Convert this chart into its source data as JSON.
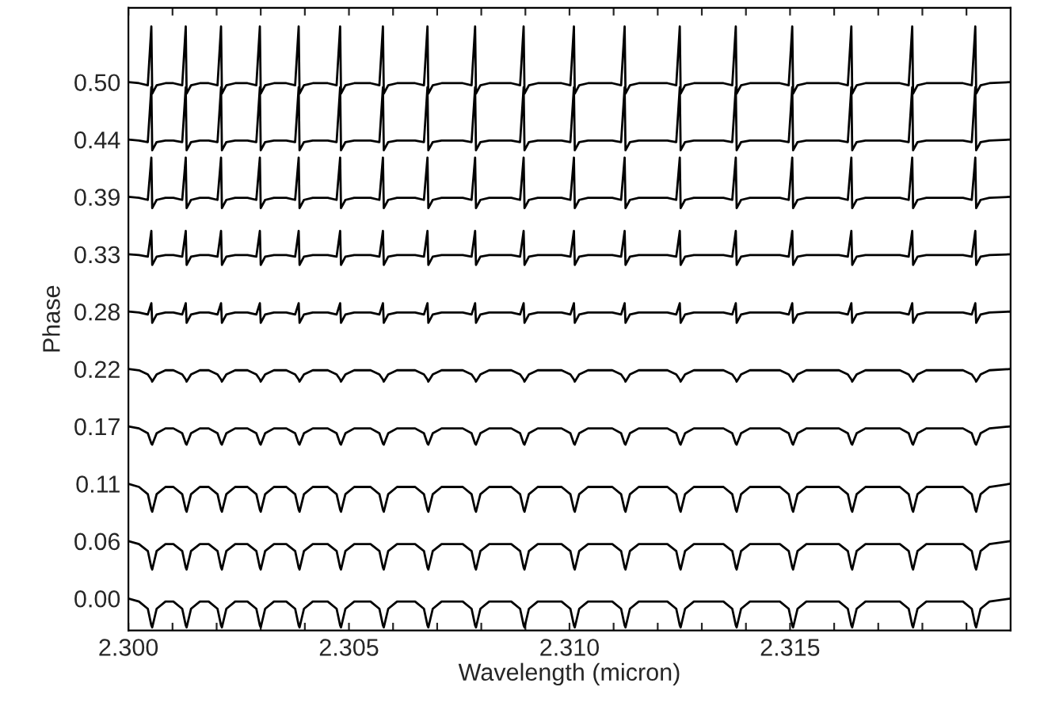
{
  "chart_data": {
    "type": "line",
    "xlabel": "Wavelength (micron)",
    "ylabel": "Phase",
    "xlim": [
      2.3,
      2.32
    ],
    "ylim": [
      -0.031,
      0.572
    ],
    "xticks": [
      {
        "value": 2.3,
        "label": "2.300"
      },
      {
        "value": 2.301,
        "label": null
      },
      {
        "value": 2.302,
        "label": null
      },
      {
        "value": 2.303,
        "label": null
      },
      {
        "value": 2.304,
        "label": null
      },
      {
        "value": 2.305,
        "label": "2.305"
      },
      {
        "value": 2.306,
        "label": null
      },
      {
        "value": 2.307,
        "label": null
      },
      {
        "value": 2.308,
        "label": null
      },
      {
        "value": 2.309,
        "label": null
      },
      {
        "value": 2.31,
        "label": "2.310"
      },
      {
        "value": 2.311,
        "label": null
      },
      {
        "value": 2.312,
        "label": null
      },
      {
        "value": 2.313,
        "label": null
      },
      {
        "value": 2.314,
        "label": null
      },
      {
        "value": 2.315,
        "label": "2.315"
      },
      {
        "value": 2.316,
        "label": null
      },
      {
        "value": 2.317,
        "label": null
      },
      {
        "value": 2.318,
        "label": null
      },
      {
        "value": 2.319,
        "label": null
      }
    ],
    "yticks": [
      {
        "value": 0,
        "label": "0.00"
      },
      {
        "value": 0.0556,
        "label": "0.06"
      },
      {
        "value": 0.1111,
        "label": "0.11"
      },
      {
        "value": 0.1667,
        "label": "0.17"
      },
      {
        "value": 0.2222,
        "label": "0.22"
      },
      {
        "value": 0.2778,
        "label": "0.28"
      },
      {
        "value": 0.3333,
        "label": "0.33"
      },
      {
        "value": 0.3889,
        "label": "0.39"
      },
      {
        "value": 0.4444,
        "label": "0.44"
      },
      {
        "value": 0.5,
        "label": "0.50"
      }
    ],
    "grid": false,
    "legend": false,
    "line_style": "solid",
    "x": [
      2.3,
      2.30024,
      2.30044,
      2.30052,
      2.30054,
      2.30064,
      2.30084,
      2.30102,
      2.30122,
      2.3013,
      2.30132,
      2.30142,
      2.30162,
      2.30182,
      2.30202,
      2.3021,
      2.30212,
      2.30222,
      2.30242,
      2.3027,
      2.3029,
      2.30298,
      2.303,
      2.3031,
      2.3033,
      2.30358,
      2.30378,
      2.30386,
      2.30388,
      2.30398,
      2.30418,
      2.30452,
      2.30472,
      2.3048,
      2.30482,
      2.30492,
      2.30512,
      2.30549,
      2.30569,
      2.30577,
      2.30579,
      2.30589,
      2.30609,
      2.3065,
      2.3067,
      2.30678,
      2.3068,
      2.3069,
      2.3071,
      2.30758,
      2.30778,
      2.30786,
      2.30788,
      2.30798,
      2.30818,
      2.30868,
      2.30888,
      2.30896,
      2.30898,
      2.30908,
      2.30928,
      2.30982,
      2.31002,
      2.3101,
      2.31012,
      2.31022,
      2.31042,
      2.31097,
      2.31117,
      2.31125,
      2.31127,
      2.31137,
      2.31157,
      2.31222,
      2.31242,
      2.3125,
      2.31252,
      2.31262,
      2.31282,
      2.31349,
      2.31369,
      2.31377,
      2.31379,
      2.31389,
      2.31409,
      2.31477,
      2.31497,
      2.31505,
      2.31507,
      2.31517,
      2.31537,
      2.31611,
      2.31631,
      2.31639,
      2.31641,
      2.31651,
      2.31671,
      2.31749,
      2.31769,
      2.31777,
      2.31779,
      2.31789,
      2.31809,
      2.31892,
      2.31912,
      2.3192,
      2.31922,
      2.31932,
      2.31952,
      2.32
    ],
    "series": [
      {
        "color": "#000000",
        "values": [
          0,
          -0.003,
          -0.01,
          -0.026,
          -0.028,
          -0.01,
          -0.003,
          -0.003,
          -0.01,
          -0.026,
          -0.028,
          -0.01,
          -0.003,
          -0.003,
          -0.01,
          -0.026,
          -0.028,
          -0.01,
          -0.003,
          -0.003,
          -0.01,
          -0.026,
          -0.028,
          -0.01,
          -0.003,
          -0.003,
          -0.01,
          -0.026,
          -0.028,
          -0.01,
          -0.003,
          -0.003,
          -0.01,
          -0.026,
          -0.028,
          -0.01,
          -0.003,
          -0.003,
          -0.01,
          -0.026,
          -0.028,
          -0.01,
          -0.003,
          -0.003,
          -0.01,
          -0.026,
          -0.028,
          -0.01,
          -0.003,
          -0.003,
          -0.01,
          -0.026,
          -0.028,
          -0.01,
          -0.003,
          -0.003,
          -0.01,
          -0.026,
          -0.028,
          -0.01,
          -0.003,
          -0.003,
          -0.01,
          -0.026,
          -0.028,
          -0.01,
          -0.003,
          -0.003,
          -0.01,
          -0.026,
          -0.028,
          -0.01,
          -0.003,
          -0.003,
          -0.01,
          -0.026,
          -0.028,
          -0.01,
          -0.003,
          -0.003,
          -0.01,
          -0.026,
          -0.028,
          -0.01,
          -0.003,
          -0.003,
          -0.01,
          -0.026,
          -0.028,
          -0.01,
          -0.003,
          -0.003,
          -0.01,
          -0.026,
          -0.028,
          -0.01,
          -0.003,
          -0.003,
          -0.01,
          -0.026,
          -0.028,
          -0.01,
          -0.003,
          -0.003,
          -0.01,
          -0.026,
          -0.028,
          -0.01,
          -0.003,
          0
        ]
      },
      {
        "color": "#000000",
        "values": [
          0.0556,
          0.0526,
          0.046,
          0.03,
          0.028,
          0.046,
          0.0526,
          0.0526,
          0.046,
          0.03,
          0.028,
          0.046,
          0.0526,
          0.0526,
          0.046,
          0.03,
          0.028,
          0.046,
          0.0526,
          0.0526,
          0.046,
          0.03,
          0.028,
          0.046,
          0.0526,
          0.0526,
          0.046,
          0.03,
          0.028,
          0.046,
          0.0526,
          0.0526,
          0.046,
          0.03,
          0.028,
          0.046,
          0.0526,
          0.0526,
          0.046,
          0.03,
          0.028,
          0.046,
          0.0526,
          0.0526,
          0.046,
          0.03,
          0.028,
          0.046,
          0.0526,
          0.0526,
          0.046,
          0.03,
          0.028,
          0.046,
          0.0526,
          0.0526,
          0.046,
          0.03,
          0.028,
          0.046,
          0.0526,
          0.0526,
          0.046,
          0.03,
          0.028,
          0.046,
          0.0526,
          0.0526,
          0.046,
          0.03,
          0.028,
          0.046,
          0.0526,
          0.0526,
          0.046,
          0.03,
          0.028,
          0.046,
          0.0526,
          0.0526,
          0.046,
          0.03,
          0.028,
          0.046,
          0.0526,
          0.0526,
          0.046,
          0.03,
          0.028,
          0.046,
          0.0526,
          0.0526,
          0.046,
          0.03,
          0.028,
          0.046,
          0.0526,
          0.0526,
          0.046,
          0.03,
          0.028,
          0.046,
          0.0526,
          0.0526,
          0.046,
          0.03,
          0.028,
          0.046,
          0.0526,
          0.0556
        ]
      },
      {
        "color": "#000000",
        "values": [
          0.1111,
          0.108,
          0.101,
          0.086,
          0.084,
          0.101,
          0.108,
          0.108,
          0.101,
          0.086,
          0.084,
          0.101,
          0.108,
          0.108,
          0.101,
          0.086,
          0.084,
          0.101,
          0.108,
          0.108,
          0.101,
          0.086,
          0.084,
          0.101,
          0.108,
          0.108,
          0.101,
          0.086,
          0.084,
          0.101,
          0.108,
          0.108,
          0.101,
          0.086,
          0.084,
          0.101,
          0.108,
          0.108,
          0.101,
          0.086,
          0.084,
          0.101,
          0.108,
          0.108,
          0.101,
          0.086,
          0.084,
          0.101,
          0.108,
          0.108,
          0.101,
          0.086,
          0.084,
          0.101,
          0.108,
          0.108,
          0.101,
          0.086,
          0.084,
          0.101,
          0.108,
          0.108,
          0.101,
          0.086,
          0.084,
          0.101,
          0.108,
          0.108,
          0.101,
          0.086,
          0.084,
          0.101,
          0.108,
          0.108,
          0.101,
          0.086,
          0.084,
          0.101,
          0.108,
          0.108,
          0.101,
          0.086,
          0.084,
          0.101,
          0.108,
          0.108,
          0.101,
          0.086,
          0.084,
          0.101,
          0.108,
          0.108,
          0.101,
          0.086,
          0.084,
          0.101,
          0.108,
          0.108,
          0.101,
          0.086,
          0.084,
          0.101,
          0.108,
          0.108,
          0.101,
          0.086,
          0.084,
          0.101,
          0.108,
          0.1111
        ]
      },
      {
        "color": "#000000",
        "values": [
          0.1667,
          0.1647,
          0.16,
          0.15,
          0.149,
          0.16,
          0.1647,
          0.1647,
          0.16,
          0.15,
          0.149,
          0.16,
          0.1647,
          0.1647,
          0.16,
          0.15,
          0.149,
          0.16,
          0.1647,
          0.1647,
          0.16,
          0.15,
          0.149,
          0.16,
          0.1647,
          0.1647,
          0.16,
          0.15,
          0.149,
          0.16,
          0.1647,
          0.1647,
          0.16,
          0.15,
          0.149,
          0.16,
          0.1647,
          0.1647,
          0.16,
          0.15,
          0.149,
          0.16,
          0.1647,
          0.1647,
          0.16,
          0.15,
          0.149,
          0.16,
          0.1647,
          0.1647,
          0.16,
          0.15,
          0.149,
          0.16,
          0.1647,
          0.1647,
          0.16,
          0.15,
          0.149,
          0.16,
          0.1647,
          0.1647,
          0.16,
          0.15,
          0.149,
          0.16,
          0.1647,
          0.1647,
          0.16,
          0.15,
          0.149,
          0.16,
          0.1647,
          0.1647,
          0.16,
          0.15,
          0.149,
          0.16,
          0.1647,
          0.1647,
          0.16,
          0.15,
          0.149,
          0.16,
          0.1647,
          0.1647,
          0.16,
          0.15,
          0.149,
          0.16,
          0.1647,
          0.1647,
          0.16,
          0.15,
          0.149,
          0.16,
          0.1647,
          0.1647,
          0.16,
          0.15,
          0.149,
          0.16,
          0.1647,
          0.1647,
          0.16,
          0.15,
          0.149,
          0.16,
          0.1647,
          0.1667
        ]
      },
      {
        "color": "#000000",
        "values": [
          0.2222,
          0.221,
          0.217,
          0.212,
          0.21,
          0.217,
          0.221,
          0.221,
          0.217,
          0.212,
          0.21,
          0.217,
          0.221,
          0.221,
          0.217,
          0.212,
          0.21,
          0.217,
          0.221,
          0.221,
          0.217,
          0.212,
          0.21,
          0.217,
          0.221,
          0.221,
          0.217,
          0.212,
          0.21,
          0.217,
          0.221,
          0.221,
          0.217,
          0.212,
          0.21,
          0.217,
          0.221,
          0.221,
          0.217,
          0.212,
          0.21,
          0.217,
          0.221,
          0.221,
          0.217,
          0.212,
          0.21,
          0.217,
          0.221,
          0.221,
          0.217,
          0.212,
          0.21,
          0.217,
          0.221,
          0.221,
          0.217,
          0.212,
          0.21,
          0.217,
          0.221,
          0.221,
          0.217,
          0.212,
          0.21,
          0.217,
          0.221,
          0.221,
          0.217,
          0.212,
          0.21,
          0.217,
          0.221,
          0.221,
          0.217,
          0.212,
          0.21,
          0.217,
          0.221,
          0.221,
          0.217,
          0.212,
          0.21,
          0.217,
          0.221,
          0.221,
          0.217,
          0.212,
          0.21,
          0.217,
          0.221,
          0.221,
          0.217,
          0.212,
          0.21,
          0.217,
          0.221,
          0.221,
          0.217,
          0.212,
          0.21,
          0.217,
          0.221,
          0.221,
          0.217,
          0.212,
          0.21,
          0.217,
          0.221,
          0.2222
        ]
      },
      {
        "color": "#000000",
        "values": [
          0.2778,
          0.277,
          0.275,
          0.286,
          0.267,
          0.275,
          0.277,
          0.277,
          0.275,
          0.286,
          0.267,
          0.275,
          0.277,
          0.277,
          0.275,
          0.286,
          0.267,
          0.275,
          0.277,
          0.277,
          0.275,
          0.286,
          0.267,
          0.275,
          0.277,
          0.277,
          0.275,
          0.286,
          0.267,
          0.275,
          0.277,
          0.277,
          0.275,
          0.286,
          0.267,
          0.275,
          0.277,
          0.277,
          0.275,
          0.286,
          0.267,
          0.275,
          0.277,
          0.277,
          0.275,
          0.286,
          0.267,
          0.275,
          0.277,
          0.277,
          0.275,
          0.286,
          0.267,
          0.275,
          0.277,
          0.277,
          0.275,
          0.286,
          0.267,
          0.275,
          0.277,
          0.277,
          0.275,
          0.286,
          0.267,
          0.275,
          0.277,
          0.277,
          0.275,
          0.286,
          0.267,
          0.275,
          0.277,
          0.277,
          0.275,
          0.286,
          0.267,
          0.275,
          0.277,
          0.277,
          0.275,
          0.286,
          0.267,
          0.275,
          0.277,
          0.277,
          0.275,
          0.286,
          0.267,
          0.275,
          0.277,
          0.277,
          0.275,
          0.286,
          0.267,
          0.275,
          0.277,
          0.277,
          0.275,
          0.286,
          0.267,
          0.275,
          0.277,
          0.277,
          0.275,
          0.286,
          0.267,
          0.275,
          0.277,
          0.2778
        ]
      },
      {
        "color": "#000000",
        "values": [
          0.3333,
          0.3325,
          0.331,
          0.356,
          0.323,
          0.331,
          0.3325,
          0.3325,
          0.331,
          0.356,
          0.323,
          0.331,
          0.3325,
          0.3325,
          0.331,
          0.356,
          0.323,
          0.331,
          0.3325,
          0.3325,
          0.331,
          0.356,
          0.323,
          0.331,
          0.3325,
          0.3325,
          0.331,
          0.356,
          0.323,
          0.331,
          0.3325,
          0.3325,
          0.331,
          0.356,
          0.323,
          0.331,
          0.3325,
          0.3325,
          0.331,
          0.356,
          0.323,
          0.331,
          0.3325,
          0.3325,
          0.331,
          0.356,
          0.323,
          0.331,
          0.3325,
          0.3325,
          0.331,
          0.356,
          0.323,
          0.331,
          0.3325,
          0.3325,
          0.331,
          0.356,
          0.323,
          0.331,
          0.3325,
          0.3325,
          0.331,
          0.356,
          0.323,
          0.331,
          0.3325,
          0.3325,
          0.331,
          0.356,
          0.323,
          0.331,
          0.3325,
          0.3325,
          0.331,
          0.356,
          0.323,
          0.331,
          0.3325,
          0.3325,
          0.331,
          0.356,
          0.323,
          0.331,
          0.3325,
          0.3325,
          0.331,
          0.356,
          0.323,
          0.331,
          0.3325,
          0.3325,
          0.331,
          0.356,
          0.323,
          0.331,
          0.3325,
          0.3325,
          0.331,
          0.356,
          0.323,
          0.331,
          0.3325,
          0.3325,
          0.331,
          0.356,
          0.323,
          0.331,
          0.3325,
          0.3333
        ]
      },
      {
        "color": "#000000",
        "values": [
          0.3889,
          0.388,
          0.386,
          0.427,
          0.378,
          0.386,
          0.388,
          0.388,
          0.386,
          0.427,
          0.378,
          0.386,
          0.388,
          0.388,
          0.386,
          0.427,
          0.378,
          0.386,
          0.388,
          0.388,
          0.386,
          0.427,
          0.378,
          0.386,
          0.388,
          0.388,
          0.386,
          0.427,
          0.378,
          0.386,
          0.388,
          0.388,
          0.386,
          0.427,
          0.378,
          0.386,
          0.388,
          0.388,
          0.386,
          0.427,
          0.378,
          0.386,
          0.388,
          0.388,
          0.386,
          0.427,
          0.378,
          0.386,
          0.388,
          0.388,
          0.386,
          0.427,
          0.378,
          0.386,
          0.388,
          0.388,
          0.386,
          0.427,
          0.378,
          0.386,
          0.388,
          0.388,
          0.386,
          0.427,
          0.378,
          0.386,
          0.388,
          0.388,
          0.386,
          0.427,
          0.378,
          0.386,
          0.388,
          0.388,
          0.386,
          0.427,
          0.378,
          0.386,
          0.388,
          0.388,
          0.386,
          0.427,
          0.378,
          0.386,
          0.388,
          0.388,
          0.386,
          0.427,
          0.378,
          0.386,
          0.388,
          0.388,
          0.386,
          0.427,
          0.378,
          0.386,
          0.388,
          0.388,
          0.386,
          0.427,
          0.378,
          0.386,
          0.388,
          0.388,
          0.386,
          0.427,
          0.378,
          0.386,
          0.388,
          0.3889
        ]
      },
      {
        "color": "#000000",
        "values": [
          0.4444,
          0.4435,
          0.442,
          0.495,
          0.434,
          0.442,
          0.4435,
          0.4435,
          0.442,
          0.495,
          0.434,
          0.442,
          0.4435,
          0.4435,
          0.442,
          0.495,
          0.434,
          0.442,
          0.4435,
          0.4435,
          0.442,
          0.495,
          0.434,
          0.442,
          0.4435,
          0.4435,
          0.442,
          0.495,
          0.434,
          0.442,
          0.4435,
          0.4435,
          0.442,
          0.495,
          0.434,
          0.442,
          0.4435,
          0.4435,
          0.442,
          0.495,
          0.434,
          0.442,
          0.4435,
          0.4435,
          0.442,
          0.495,
          0.434,
          0.442,
          0.4435,
          0.4435,
          0.442,
          0.495,
          0.434,
          0.442,
          0.4435,
          0.4435,
          0.442,
          0.495,
          0.434,
          0.442,
          0.4435,
          0.4435,
          0.442,
          0.495,
          0.434,
          0.442,
          0.4435,
          0.4435,
          0.442,
          0.495,
          0.434,
          0.442,
          0.4435,
          0.4435,
          0.442,
          0.495,
          0.434,
          0.442,
          0.4435,
          0.4435,
          0.442,
          0.495,
          0.434,
          0.442,
          0.4435,
          0.4435,
          0.442,
          0.495,
          0.434,
          0.442,
          0.4435,
          0.4435,
          0.442,
          0.495,
          0.434,
          0.442,
          0.4435,
          0.4435,
          0.442,
          0.495,
          0.434,
          0.442,
          0.4435,
          0.4435,
          0.442,
          0.495,
          0.434,
          0.442,
          0.4435,
          0.4444
        ]
      },
      {
        "color": "#000000",
        "values": [
          0.5,
          0.499,
          0.497,
          0.554,
          0.489,
          0.497,
          0.499,
          0.499,
          0.497,
          0.554,
          0.489,
          0.497,
          0.499,
          0.499,
          0.497,
          0.554,
          0.489,
          0.497,
          0.499,
          0.499,
          0.497,
          0.554,
          0.489,
          0.497,
          0.499,
          0.499,
          0.497,
          0.554,
          0.489,
          0.497,
          0.499,
          0.499,
          0.497,
          0.554,
          0.489,
          0.497,
          0.499,
          0.499,
          0.497,
          0.554,
          0.489,
          0.497,
          0.499,
          0.499,
          0.497,
          0.554,
          0.489,
          0.497,
          0.499,
          0.499,
          0.497,
          0.554,
          0.489,
          0.497,
          0.499,
          0.499,
          0.497,
          0.554,
          0.489,
          0.497,
          0.499,
          0.499,
          0.497,
          0.554,
          0.489,
          0.497,
          0.499,
          0.499,
          0.497,
          0.554,
          0.489,
          0.497,
          0.499,
          0.499,
          0.497,
          0.554,
          0.489,
          0.497,
          0.499,
          0.499,
          0.497,
          0.554,
          0.489,
          0.497,
          0.499,
          0.499,
          0.497,
          0.554,
          0.489,
          0.497,
          0.499,
          0.499,
          0.497,
          0.554,
          0.489,
          0.497,
          0.499,
          0.499,
          0.497,
          0.554,
          0.489,
          0.497,
          0.499,
          0.499,
          0.497,
          0.554,
          0.489,
          0.497,
          0.499,
          0.5
        ]
      }
    ]
  }
}
